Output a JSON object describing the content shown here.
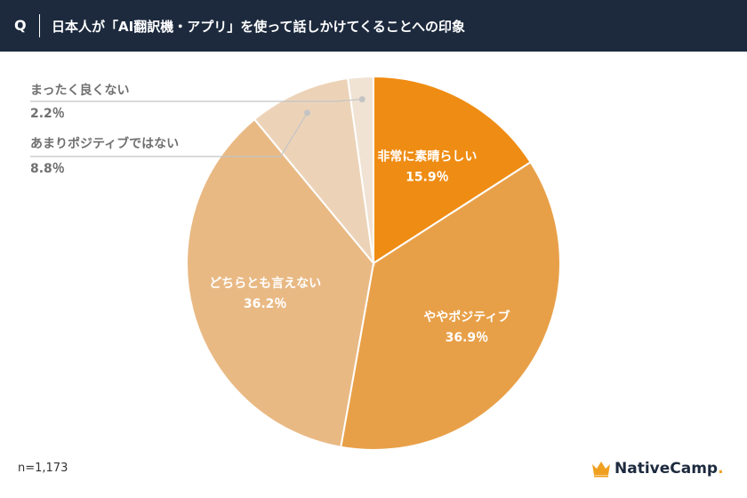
{
  "header": {
    "q_label": "Q",
    "title": "日本人が「AI翻訳機・アプリ」を使って話しかけてくることへの印象"
  },
  "chart_data": {
    "type": "pie",
    "start_angle_deg": 0,
    "direction": "clockwise",
    "slices": [
      {
        "label": "非常に素晴らしい",
        "value": 15.9,
        "value_text": "15.9％",
        "color": "#ef8c13",
        "label_color": "#ffffff",
        "label_position": "inside"
      },
      {
        "label": "ややポジティブ",
        "value": 36.9,
        "value_text": "36.9％",
        "color": "#e8a048",
        "label_color": "#ffffff",
        "label_position": "inside"
      },
      {
        "label": "どちらとも言えない",
        "value": 36.2,
        "value_text": "36.2％",
        "color": "#e9b984",
        "label_color": "#ffffff",
        "label_position": "inside"
      },
      {
        "label": "あまりポジティブではない",
        "value": 8.8,
        "value_text": "8.8％",
        "color": "#ecd3b8",
        "label_color": "#707070",
        "label_position": "outside"
      },
      {
        "label": "まったく良くない",
        "value": 2.2,
        "value_text": "2.2％",
        "color": "#f0e3d4",
        "label_color": "#707070",
        "label_position": "outside"
      }
    ],
    "line_color": "#c4c4c4"
  },
  "footer": {
    "sample_size": "n=1,173",
    "logo_text": "NativeCamp.",
    "logo_color": "#1d2a3e",
    "logo_accent_color": "#f0a020"
  }
}
